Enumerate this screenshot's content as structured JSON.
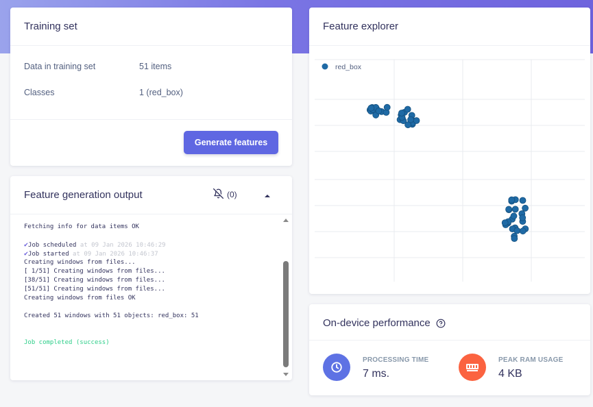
{
  "training_set": {
    "title": "Training set",
    "rows": [
      {
        "label": "Data in training set",
        "value": "51 items"
      },
      {
        "label": "Classes",
        "value": "1 (red_box)"
      }
    ],
    "generate_button": "Generate features"
  },
  "output": {
    "title": "Feature generation output",
    "notifications_icon": "bell-off-icon",
    "notification_count": "(0)",
    "collapse_icon": "caret-up-icon",
    "log": [
      {
        "text": "Fetching info for data items OK"
      },
      {
        "text": ""
      },
      {
        "check": true,
        "text": "Job scheduled",
        "ts": " at 09 Jan 2026 10:46:29"
      },
      {
        "check": true,
        "text": "Job started",
        "ts": " at 09 Jan 2026 10:46:37"
      },
      {
        "text": "Creating windows from files..."
      },
      {
        "text": "[ 1/51] Creating windows from files..."
      },
      {
        "text": "[38/51] Creating windows from files..."
      },
      {
        "text": "[51/51] Creating windows from files..."
      },
      {
        "text": "Creating windows from files OK"
      },
      {
        "text": ""
      },
      {
        "text": "Created 51 windows with 51 objects: red_box: 51"
      },
      {
        "text": ""
      },
      {
        "text": ""
      },
      {
        "text": "Job completed (success)",
        "status": "success"
      }
    ]
  },
  "explorer": {
    "title": "Feature explorer",
    "legend": "red_box",
    "series_color": "#1f6aa5"
  },
  "performance": {
    "title": "On-device performance",
    "help_icon": "help-circle-icon",
    "metrics": [
      {
        "label": "PROCESSING TIME",
        "value": "7 ms.",
        "icon": "clock-icon",
        "color": "#5e72e4"
      },
      {
        "label": "PEAK RAM USAGE",
        "value": "4 KB",
        "icon": "memory-chip-icon",
        "color": "#fb6340"
      }
    ]
  },
  "colors": {
    "accent": "#5f67e2",
    "success": "#2dce89"
  }
}
